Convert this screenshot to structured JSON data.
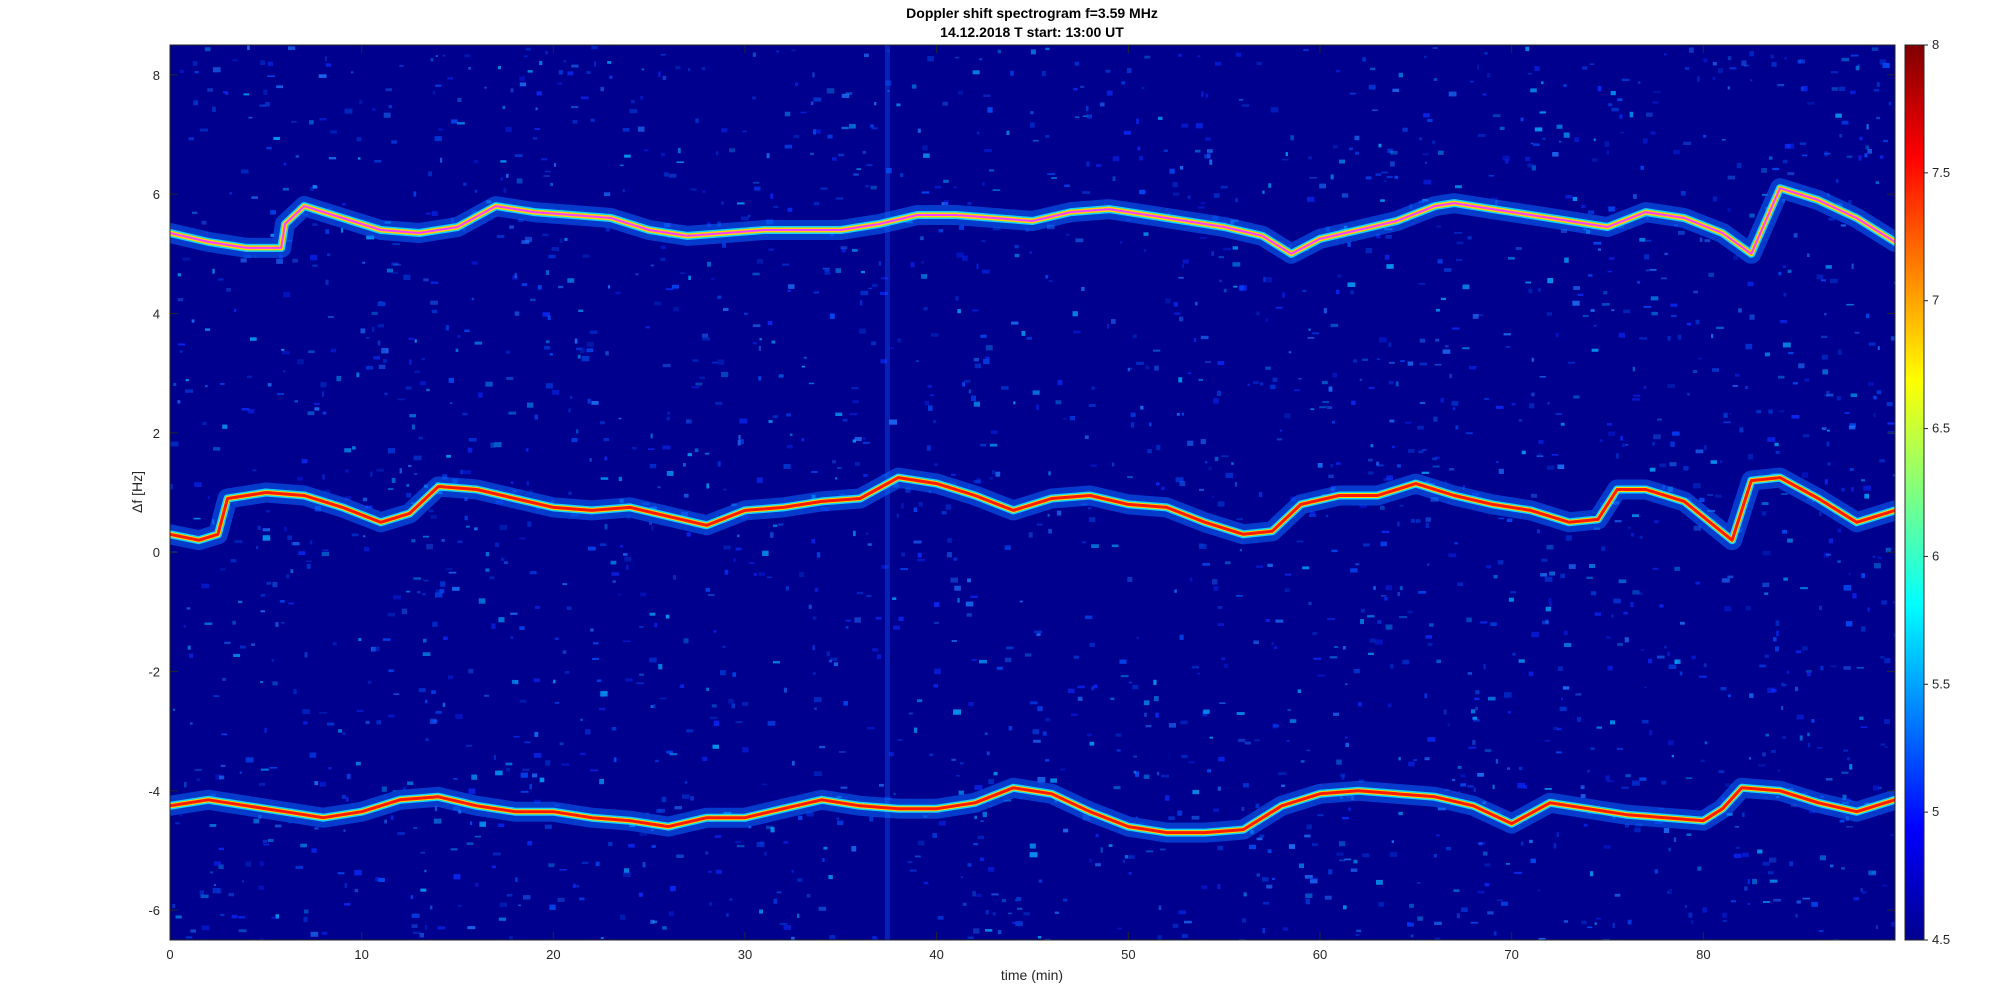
{
  "chart_data": {
    "type": "heatmap",
    "title": "Doppler shift spectrogram f=3.59 MHz",
    "subtitle": "14.12.2018   T start: 13:00 UT",
    "xlabel": "time (min)",
    "ylabel": "Δf [Hz]",
    "xlim": [
      0,
      90
    ],
    "ylim": [
      -6.5,
      8.5
    ],
    "x_ticks": [
      0,
      10,
      20,
      30,
      40,
      50,
      60,
      70,
      80
    ],
    "y_ticks": [
      8,
      6,
      4,
      2,
      0,
      -2,
      -4,
      -6
    ],
    "colorbar": {
      "range": [
        4.5,
        8
      ],
      "ticks": [
        "8",
        "7.5",
        "7",
        "6.5",
        "6",
        "5.5",
        "5",
        "4.5"
      ],
      "colormap": "jet"
    },
    "colors": {
      "background": "#00008f",
      "trace_core": "#ff1a00",
      "trace_halo": "#19e6ff",
      "fit_line": "#ff40ff"
    },
    "series": [
      {
        "x": [
          0,
          2,
          4,
          5.8,
          6,
          7,
          9,
          11,
          13,
          15,
          17,
          19,
          21,
          23,
          25,
          27,
          29,
          31,
          33,
          35,
          37,
          39,
          41,
          43,
          45,
          47,
          49,
          51,
          53,
          55,
          57,
          58.5,
          60,
          62,
          64,
          66,
          67,
          69,
          71,
          73,
          75,
          77,
          79,
          81,
          82.5,
          84,
          86,
          88,
          90
        ],
        "values": [
          5.35,
          5.2,
          5.1,
          5.1,
          5.5,
          5.8,
          5.6,
          5.4,
          5.35,
          5.45,
          5.8,
          5.7,
          5.65,
          5.6,
          5.4,
          5.3,
          5.35,
          5.4,
          5.4,
          5.4,
          5.5,
          5.65,
          5.65,
          5.6,
          5.55,
          5.7,
          5.75,
          5.65,
          5.55,
          5.45,
          5.3,
          5.0,
          5.25,
          5.4,
          5.55,
          5.8,
          5.85,
          5.75,
          5.65,
          5.55,
          5.45,
          5.7,
          5.6,
          5.35,
          5.0,
          6.1,
          5.9,
          5.6,
          5.2
        ]
      },
      {
        "x": [
          0,
          1.5,
          2.5,
          3,
          5,
          7,
          9,
          11,
          12.5,
          14,
          16,
          18,
          20,
          22,
          24,
          26,
          28,
          30,
          32,
          34,
          36,
          38,
          40,
          42,
          44,
          46,
          48,
          50,
          52,
          54,
          56,
          57.5,
          59,
          61,
          63,
          65,
          67,
          69,
          71,
          73,
          74.5,
          75.5,
          77,
          79,
          81.5,
          82.5,
          84,
          86,
          88,
          90
        ],
        "values": [
          0.3,
          0.2,
          0.3,
          0.9,
          1.0,
          0.95,
          0.75,
          0.5,
          0.65,
          1.1,
          1.05,
          0.9,
          0.75,
          0.7,
          0.75,
          0.6,
          0.45,
          0.7,
          0.75,
          0.85,
          0.9,
          1.25,
          1.15,
          0.95,
          0.7,
          0.9,
          0.95,
          0.8,
          0.75,
          0.5,
          0.3,
          0.35,
          0.8,
          0.95,
          0.95,
          1.15,
          0.95,
          0.8,
          0.7,
          0.5,
          0.55,
          1.05,
          1.05,
          0.85,
          0.2,
          1.2,
          1.25,
          0.9,
          0.5,
          0.7
        ]
      },
      {
        "x": [
          0,
          2,
          4,
          6,
          8,
          10,
          12,
          14,
          16,
          18,
          20,
          22,
          24,
          26,
          28,
          30,
          32,
          34,
          36,
          38,
          40,
          42,
          44,
          46,
          48,
          50,
          52,
          54,
          56,
          58,
          60,
          62,
          64,
          66,
          68,
          70,
          72,
          74,
          76,
          78,
          80,
          81,
          82,
          84,
          86,
          88,
          90
        ],
        "values": [
          -4.25,
          -4.15,
          -4.25,
          -4.35,
          -4.45,
          -4.35,
          -4.15,
          -4.1,
          -4.25,
          -4.35,
          -4.35,
          -4.45,
          -4.5,
          -4.6,
          -4.45,
          -4.45,
          -4.3,
          -4.15,
          -4.25,
          -4.3,
          -4.3,
          -4.2,
          -3.95,
          -4.05,
          -4.35,
          -4.6,
          -4.7,
          -4.7,
          -4.65,
          -4.25,
          -4.05,
          -4.0,
          -4.05,
          -4.1,
          -4.25,
          -4.55,
          -4.2,
          -4.3,
          -4.4,
          -4.45,
          -4.5,
          -4.3,
          -3.95,
          -4.0,
          -4.2,
          -4.35,
          -4.15
        ]
      }
    ]
  }
}
